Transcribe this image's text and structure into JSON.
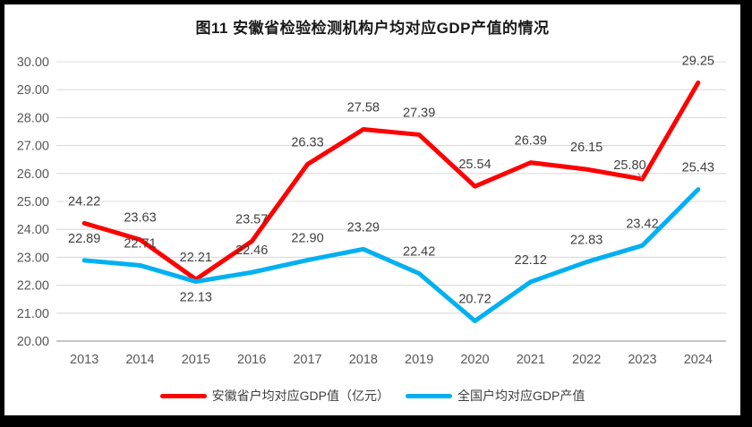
{
  "frame": {
    "border_color": "#000000",
    "background": "#ffffff"
  },
  "chart_data": {
    "type": "line",
    "title": "图11 安徽省检验检测机构户均对应GDP产值的情况",
    "categories": [
      "2013",
      "2014",
      "2015",
      "2016",
      "2017",
      "2018",
      "2019",
      "2020",
      "2021",
      "2022",
      "2023",
      "2024"
    ],
    "series": [
      {
        "name": "安徽省户均对应GDP值（亿元）",
        "color": "#fe0000",
        "values": [
          24.22,
          23.63,
          22.21,
          23.57,
          26.33,
          27.58,
          27.39,
          25.54,
          26.39,
          26.15,
          25.8,
          29.25
        ],
        "label_position": "above",
        "label_offsets": {
          "10": {
            "dx": -14,
            "dy": -11,
            "leader": true
          }
        }
      },
      {
        "name": "全国户均对应GDP产值",
        "color": "#00b0f0",
        "values": [
          22.89,
          22.71,
          22.13,
          22.46,
          22.9,
          23.29,
          22.42,
          20.72,
          22.12,
          22.83,
          23.42,
          25.43
        ],
        "label_position": "above",
        "label_offsets": {
          "2": {
            "dx": 0,
            "dy": 22
          }
        }
      }
    ],
    "y_axis": {
      "min": 20,
      "max": 30,
      "step": 1,
      "ticks": [
        "30.00",
        "29.00",
        "28.00",
        "27.00",
        "26.00",
        "25.00",
        "24.00",
        "23.00",
        "22.00",
        "21.00",
        "20.00"
      ]
    },
    "x_axis": {
      "label": "",
      "ticks_are_years": true
    },
    "grid": "horizontal",
    "legend_position": "bottom",
    "colors": {
      "gridline": "#dcdcdc",
      "axis_line": "#b3b3b3",
      "tick_text": "#595959",
      "data_label": "#3f3f3f",
      "leader_line": "#999999",
      "title": "#1a1a1a"
    }
  }
}
